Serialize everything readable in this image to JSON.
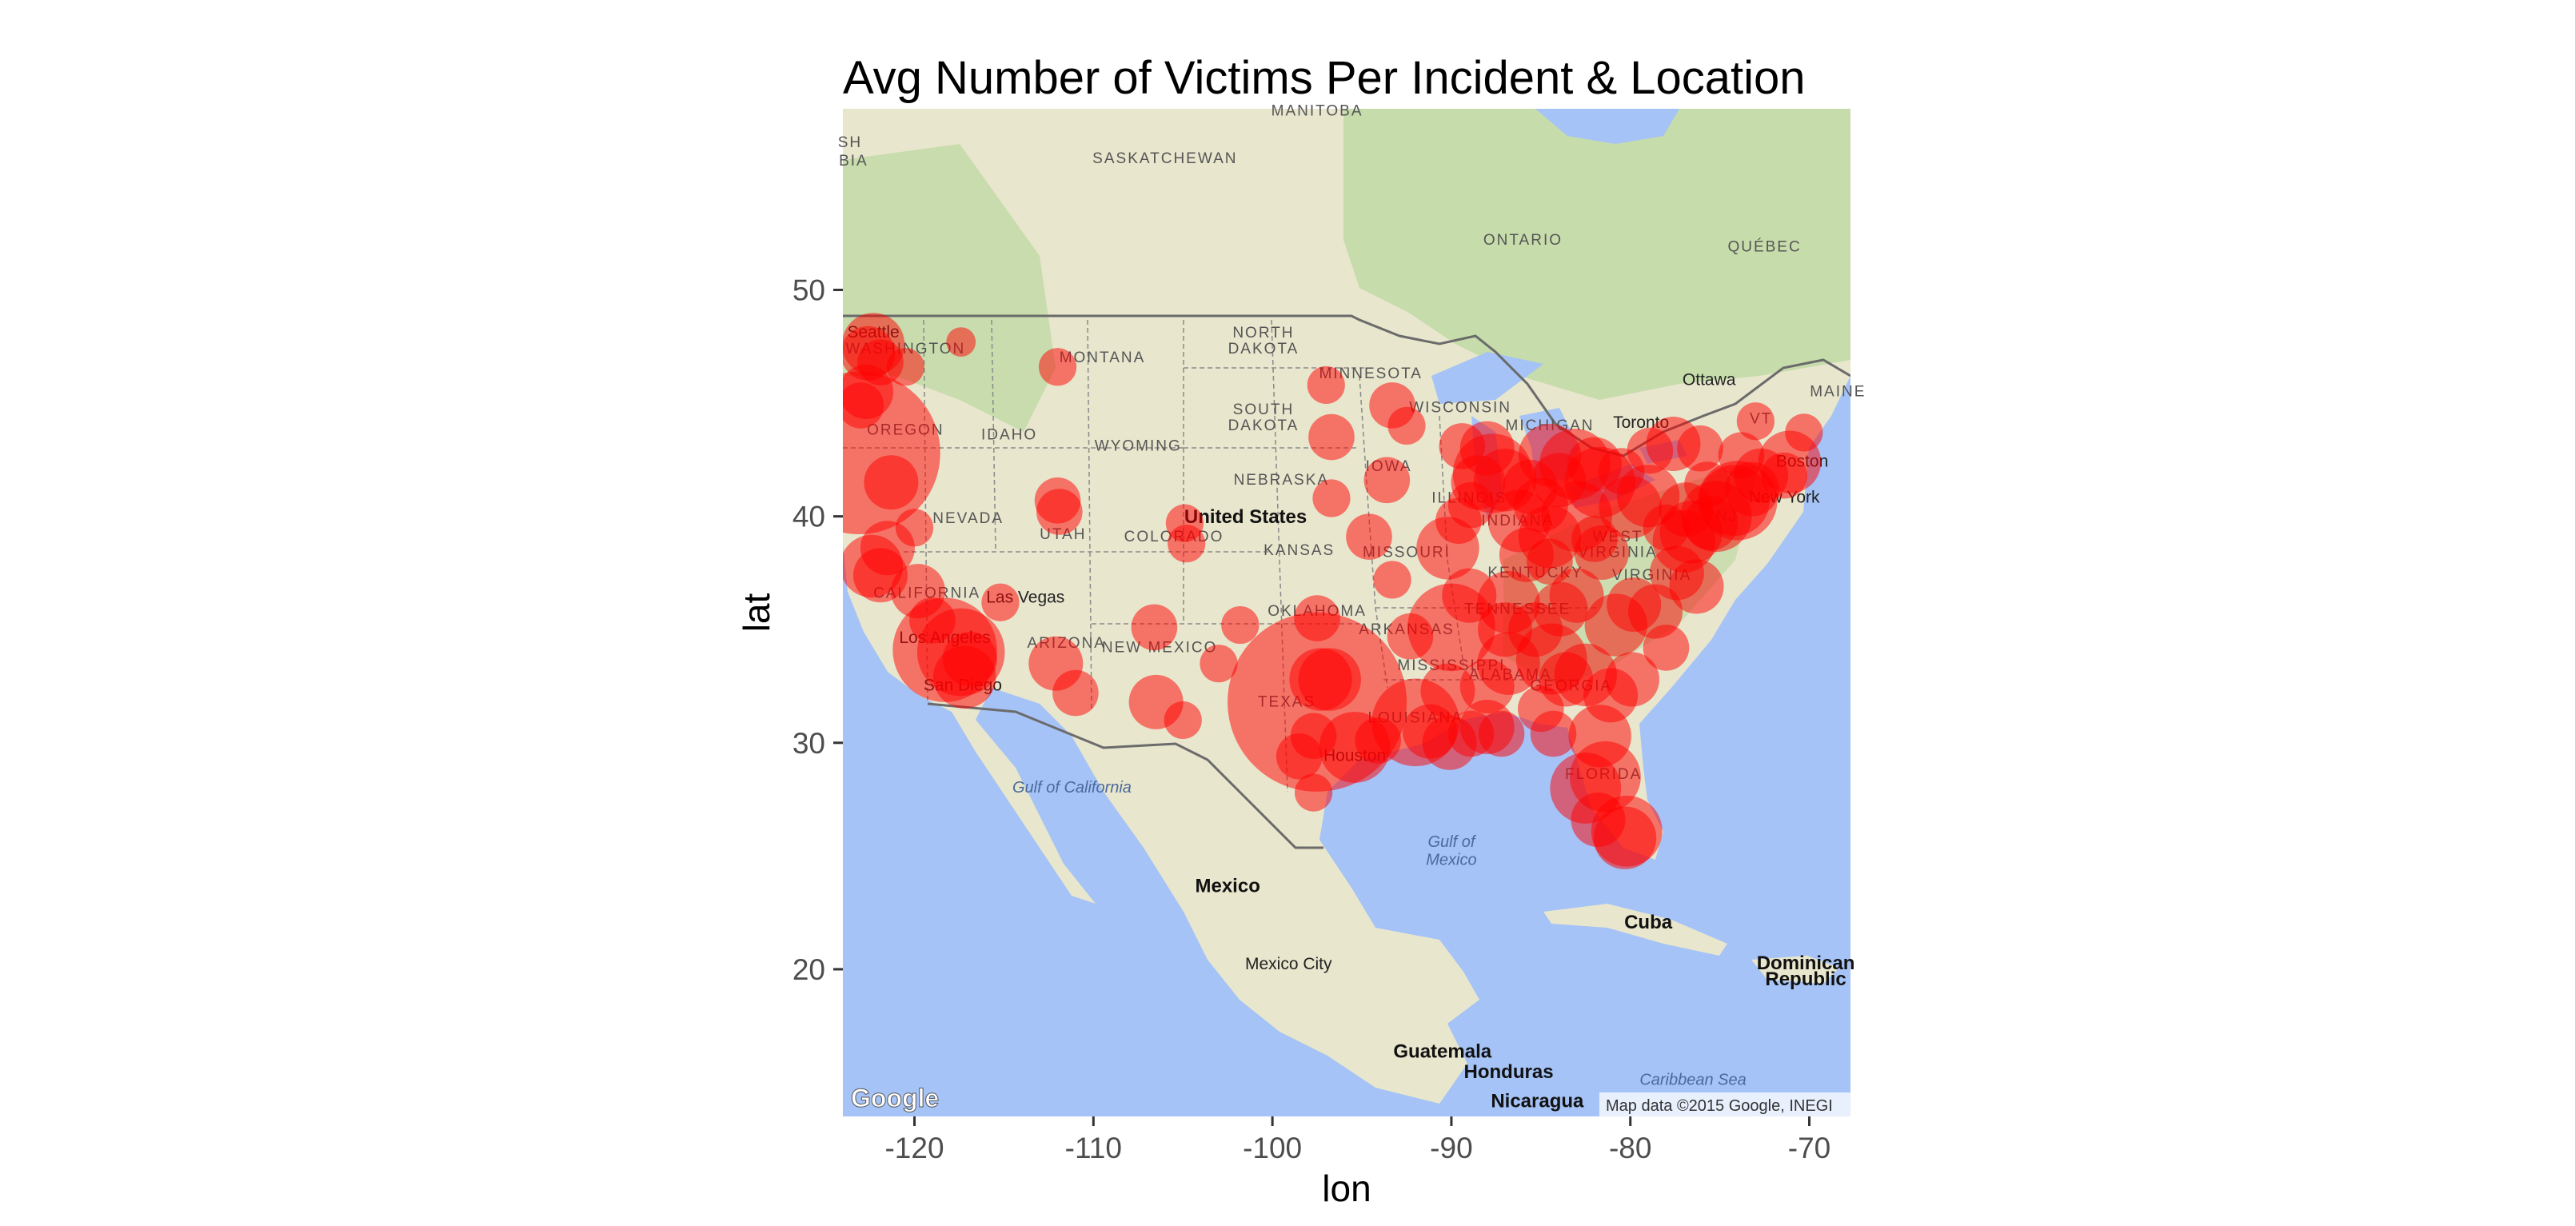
{
  "chart_data": {
    "type": "scatter",
    "title": "Avg Number of Victims Per Incident & Location",
    "xlabel": "lon",
    "ylabel": "lat",
    "xlim": [
      -124.0,
      -67.7
    ],
    "ylim": [
      13.5,
      58.0
    ],
    "x_ticks": [
      -120,
      -110,
      -100,
      -90,
      -80,
      -70
    ],
    "y_ticks": [
      20,
      30,
      40,
      50
    ],
    "x_tick_labels": [
      "-120",
      "-110",
      "-100",
      "-90",
      "-80",
      "-70"
    ],
    "y_tick_labels": [
      "20",
      "30",
      "40",
      "50"
    ],
    "grid": false,
    "legend": "none",
    "point_color": "#ff0000",
    "point_alpha": 0.5,
    "basemap": {
      "provider_logo": "Google",
      "attribution": "Map data ©2015 Google, INEGI",
      "colors": {
        "ocean": "#a5c3f6",
        "land": "#e8e6cd",
        "forest": "#bfd9a5",
        "lake": "#a5c3f6",
        "border": "#6b6b6b"
      },
      "labels": [
        {
          "text": "SASKATCHEWAN",
          "lon": -106,
          "lat": 55.6,
          "kind": "region"
        },
        {
          "text": "MANITOBA",
          "lon": -97.5,
          "lat": 57.7,
          "kind": "region"
        },
        {
          "text": "ONTARIO",
          "lon": -86,
          "lat": 52.0,
          "kind": "region"
        },
        {
          "text": "QUÉBEC",
          "lon": -72.5,
          "lat": 51.7,
          "kind": "region"
        },
        {
          "text": "SH",
          "lon": -123.6,
          "lat": 56.3,
          "kind": "region"
        },
        {
          "text": "BIA",
          "lon": -123.4,
          "lat": 55.5,
          "kind": "region"
        },
        {
          "text": "NORTH",
          "lon": -100.5,
          "lat": 47.9,
          "kind": "region"
        },
        {
          "text": "DAKOTA",
          "lon": -100.5,
          "lat": 47.2,
          "kind": "region"
        },
        {
          "text": "SOUTH",
          "lon": -100.5,
          "lat": 44.5,
          "kind": "region"
        },
        {
          "text": "DAKOTA",
          "lon": -100.5,
          "lat": 43.8,
          "kind": "region"
        },
        {
          "text": "MINNESOTA",
          "lon": -94.5,
          "lat": 46.1,
          "kind": "region"
        },
        {
          "text": "WISCONSIN",
          "lon": -89.5,
          "lat": 44.6,
          "kind": "region"
        },
        {
          "text": "MICHIGAN",
          "lon": -84.5,
          "lat": 43.8,
          "kind": "region"
        },
        {
          "text": "MONTANA",
          "lon": -109.5,
          "lat": 46.8,
          "kind": "region"
        },
        {
          "text": "WYOMING",
          "lon": -107.5,
          "lat": 42.9,
          "kind": "region"
        },
        {
          "text": "IDAHO",
          "lon": -114.7,
          "lat": 43.4,
          "kind": "region"
        },
        {
          "text": "OREGON",
          "lon": -120.5,
          "lat": 43.6,
          "kind": "region"
        },
        {
          "text": "WASHINGTON",
          "lon": -120.5,
          "lat": 47.2,
          "kind": "region"
        },
        {
          "text": "Seattle",
          "lon": -122.3,
          "lat": 47.9,
          "kind": "city"
        },
        {
          "text": "NEVADA",
          "lon": -117.0,
          "lat": 39.7,
          "kind": "region"
        },
        {
          "text": "UTAH",
          "lon": -111.7,
          "lat": 39.0,
          "kind": "region"
        },
        {
          "text": "COLORADO",
          "lon": -105.5,
          "lat": 38.9,
          "kind": "region"
        },
        {
          "text": "NEBRASKA",
          "lon": -99.5,
          "lat": 41.4,
          "kind": "region"
        },
        {
          "text": "IOWA",
          "lon": -93.5,
          "lat": 42.0,
          "kind": "region"
        },
        {
          "text": "ILLINOIS",
          "lon": -89.0,
          "lat": 40.6,
          "kind": "region"
        },
        {
          "text": "INDIANA",
          "lon": -86.3,
          "lat": 39.6,
          "kind": "region"
        },
        {
          "text": "United States",
          "lon": -101.5,
          "lat": 39.7,
          "kind": "country"
        },
        {
          "text": "KANSAS",
          "lon": -98.5,
          "lat": 38.3,
          "kind": "region"
        },
        {
          "text": "MISSOURI",
          "lon": -92.5,
          "lat": 38.2,
          "kind": "region"
        },
        {
          "text": "KENTUCKY",
          "lon": -85.3,
          "lat": 37.3,
          "kind": "region"
        },
        {
          "text": "WEST",
          "lon": -80.7,
          "lat": 38.9,
          "kind": "region"
        },
        {
          "text": "VIRGINIA",
          "lon": -80.7,
          "lat": 38.2,
          "kind": "region"
        },
        {
          "text": "VIRGINIA",
          "lon": -78.8,
          "lat": 37.2,
          "kind": "region"
        },
        {
          "text": "NJ",
          "lon": -74.6,
          "lat": 39.8,
          "kind": "region"
        },
        {
          "text": "New York",
          "lon": -71.4,
          "lat": 40.6,
          "kind": "city"
        },
        {
          "text": "Boston",
          "lon": -70.4,
          "lat": 42.2,
          "kind": "city"
        },
        {
          "text": "MAINE",
          "lon": -68.4,
          "lat": 45.3,
          "kind": "region"
        },
        {
          "text": "VT",
          "lon": -72.7,
          "lat": 44.1,
          "kind": "region"
        },
        {
          "text": "Ottawa",
          "lon": -75.6,
          "lat": 45.8,
          "kind": "city"
        },
        {
          "text": "Toronto",
          "lon": -79.4,
          "lat": 43.9,
          "kind": "city"
        },
        {
          "text": "CALIFORNIA",
          "lon": -119.3,
          "lat": 36.4,
          "kind": "region"
        },
        {
          "text": "Las Vegas",
          "lon": -113.8,
          "lat": 36.2,
          "kind": "city"
        },
        {
          "text": "Los Angeles",
          "lon": -118.3,
          "lat": 34.4,
          "kind": "city"
        },
        {
          "text": "San Diego",
          "lon": -117.3,
          "lat": 32.3,
          "kind": "city"
        },
        {
          "text": "ARIZONA",
          "lon": -111.5,
          "lat": 34.2,
          "kind": "region"
        },
        {
          "text": "NEW MEXICO",
          "lon": -106.3,
          "lat": 34.0,
          "kind": "region"
        },
        {
          "text": "OKLAHOMA",
          "lon": -97.5,
          "lat": 35.6,
          "kind": "region"
        },
        {
          "text": "ARKANSAS",
          "lon": -92.5,
          "lat": 34.8,
          "kind": "region"
        },
        {
          "text": "TENNESSEE",
          "lon": -86.3,
          "lat": 35.7,
          "kind": "region"
        },
        {
          "text": "MISSISSIPPI",
          "lon": -90.0,
          "lat": 33.2,
          "kind": "region"
        },
        {
          "text": "ALABAMA",
          "lon": -86.7,
          "lat": 32.8,
          "kind": "region"
        },
        {
          "text": "GEORGIA",
          "lon": -83.3,
          "lat": 32.3,
          "kind": "region"
        },
        {
          "text": "TEXAS",
          "lon": -99.2,
          "lat": 31.6,
          "kind": "region"
        },
        {
          "text": "LOUISIANA",
          "lon": -92.0,
          "lat": 30.9,
          "kind": "region"
        },
        {
          "text": "Houston",
          "lon": -95.4,
          "lat": 29.2,
          "kind": "city"
        },
        {
          "text": "FLORIDA",
          "lon": -81.5,
          "lat": 28.4,
          "kind": "region"
        },
        {
          "text": "Gulf of",
          "lon": -90.0,
          "lat": 25.4,
          "kind": "water"
        },
        {
          "text": "Mexico",
          "lon": -90.0,
          "lat": 24.6,
          "kind": "water"
        },
        {
          "text": "Gulf of California",
          "lon": -111.2,
          "lat": 27.8,
          "kind": "water"
        },
        {
          "text": "Mexico",
          "lon": -102.5,
          "lat": 23.4,
          "kind": "country"
        },
        {
          "text": "Mexico City",
          "lon": -99.1,
          "lat": 20.0,
          "kind": "city"
        },
        {
          "text": "Cuba",
          "lon": -79.0,
          "lat": 21.8,
          "kind": "country"
        },
        {
          "text": "Dominican",
          "lon": -70.2,
          "lat": 20.0,
          "kind": "country"
        },
        {
          "text": "Republic",
          "lon": -70.2,
          "lat": 19.3,
          "kind": "country"
        },
        {
          "text": "Guatemala",
          "lon": -90.5,
          "lat": 16.1,
          "kind": "country"
        },
        {
          "text": "Honduras",
          "lon": -86.8,
          "lat": 15.2,
          "kind": "country"
        },
        {
          "text": "Nicaragua",
          "lon": -85.2,
          "lat": 13.9,
          "kind": "country"
        },
        {
          "text": "Caribbean Sea",
          "lon": -76.5,
          "lat": 14.9,
          "kind": "water"
        }
      ]
    },
    "points": [
      {
        "x": -122.3,
        "y": 47.6,
        "size": 6
      },
      {
        "x": -122.6,
        "y": 47.2,
        "size": 5
      },
      {
        "x": -121.9,
        "y": 46.8,
        "size": 4
      },
      {
        "x": -120.5,
        "y": 46.6,
        "size": 3
      },
      {
        "x": -117.4,
        "y": 47.7,
        "size": 2
      },
      {
        "x": -112.0,
        "y": 46.6,
        "size": 3
      },
      {
        "x": -122.7,
        "y": 45.5,
        "size": 5
      },
      {
        "x": -123.0,
        "y": 44.9,
        "size": 4
      },
      {
        "x": -123.1,
        "y": 42.8,
        "size": 18
      },
      {
        "x": -121.3,
        "y": 41.5,
        "size": 5
      },
      {
        "x": -122.4,
        "y": 37.8,
        "size": 6
      },
      {
        "x": -121.9,
        "y": 37.4,
        "size": 5
      },
      {
        "x": -121.5,
        "y": 38.6,
        "size": 5
      },
      {
        "x": -119.8,
        "y": 36.7,
        "size": 5
      },
      {
        "x": -120.0,
        "y": 39.5,
        "size": 3
      },
      {
        "x": -119.0,
        "y": 35.4,
        "size": 4
      },
      {
        "x": -118.3,
        "y": 34.1,
        "size": 11
      },
      {
        "x": -117.4,
        "y": 34.0,
        "size": 9
      },
      {
        "x": -117.2,
        "y": 32.9,
        "size": 6
      },
      {
        "x": -116.9,
        "y": 33.7,
        "size": 5
      },
      {
        "x": -115.2,
        "y": 36.2,
        "size": 3
      },
      {
        "x": -112.1,
        "y": 33.5,
        "size": 5
      },
      {
        "x": -111.0,
        "y": 32.2,
        "size": 4
      },
      {
        "x": -112.0,
        "y": 40.7,
        "size": 4
      },
      {
        "x": -111.9,
        "y": 40.2,
        "size": 4
      },
      {
        "x": -104.9,
        "y": 39.7,
        "size": 3
      },
      {
        "x": -104.8,
        "y": 38.8,
        "size": 3
      },
      {
        "x": -106.6,
        "y": 35.1,
        "size": 4
      },
      {
        "x": -106.5,
        "y": 31.8,
        "size": 5
      },
      {
        "x": -105.0,
        "y": 31.0,
        "size": 3
      },
      {
        "x": -103.0,
        "y": 33.5,
        "size": 3
      },
      {
        "x": -101.8,
        "y": 35.2,
        "size": 3
      },
      {
        "x": -97.5,
        "y": 35.5,
        "size": 4
      },
      {
        "x": -97.3,
        "y": 32.8,
        "size": 6
      },
      {
        "x": -96.8,
        "y": 32.8,
        "size": 6
      },
      {
        "x": -97.5,
        "y": 31.8,
        "size": 20
      },
      {
        "x": -95.4,
        "y": 29.8,
        "size": 7
      },
      {
        "x": -94.1,
        "y": 30.1,
        "size": 4
      },
      {
        "x": -98.5,
        "y": 29.4,
        "size": 4
      },
      {
        "x": -97.7,
        "y": 30.3,
        "size": 4
      },
      {
        "x": -97.7,
        "y": 27.8,
        "size": 3
      },
      {
        "x": -92.0,
        "y": 30.9,
        "size": 9
      },
      {
        "x": -91.2,
        "y": 30.5,
        "size": 5
      },
      {
        "x": -90.1,
        "y": 30.0,
        "size": 5
      },
      {
        "x": -90.2,
        "y": 32.3,
        "size": 5
      },
      {
        "x": -92.3,
        "y": 34.7,
        "size": 4
      },
      {
        "x": -94.6,
        "y": 39.1,
        "size": 4
      },
      {
        "x": -90.2,
        "y": 38.6,
        "size": 6
      },
      {
        "x": -93.3,
        "y": 37.2,
        "size": 3
      },
      {
        "x": -96.7,
        "y": 40.8,
        "size": 3
      },
      {
        "x": -93.6,
        "y": 41.6,
        "size": 4
      },
      {
        "x": -96.7,
        "y": 43.5,
        "size": 4
      },
      {
        "x": -93.3,
        "y": 44.9,
        "size": 4
      },
      {
        "x": -92.5,
        "y": 44.0,
        "size": 3
      },
      {
        "x": -97.0,
        "y": 45.8,
        "size": 3
      },
      {
        "x": -88.0,
        "y": 43.0,
        "size": 5
      },
      {
        "x": -89.4,
        "y": 43.1,
        "size": 4
      },
      {
        "x": -87.7,
        "y": 41.9,
        "size": 8
      },
      {
        "x": -88.9,
        "y": 40.5,
        "size": 4
      },
      {
        "x": -89.6,
        "y": 39.8,
        "size": 4
      },
      {
        "x": -86.2,
        "y": 39.8,
        "size": 6
      },
      {
        "x": -85.6,
        "y": 41.3,
        "size": 5
      },
      {
        "x": -84.5,
        "y": 42.7,
        "size": 6
      },
      {
        "x": -83.1,
        "y": 42.3,
        "size": 7
      },
      {
        "x": -84.5,
        "y": 39.1,
        "size": 6
      },
      {
        "x": -83.0,
        "y": 40.0,
        "size": 7
      },
      {
        "x": -81.7,
        "y": 41.5,
        "size": 7
      },
      {
        "x": -80.0,
        "y": 40.4,
        "size": 6
      },
      {
        "x": -85.8,
        "y": 38.3,
        "size": 5
      },
      {
        "x": -84.5,
        "y": 38.0,
        "size": 4
      },
      {
        "x": -86.8,
        "y": 36.2,
        "size": 6
      },
      {
        "x": -90.0,
        "y": 35.1,
        "size": 9
      },
      {
        "x": -85.3,
        "y": 35.0,
        "size": 5
      },
      {
        "x": -83.9,
        "y": 35.9,
        "size": 5
      },
      {
        "x": -86.8,
        "y": 33.5,
        "size": 6
      },
      {
        "x": -88.0,
        "y": 30.7,
        "size": 5
      },
      {
        "x": -84.4,
        "y": 33.7,
        "size": 7
      },
      {
        "x": -83.6,
        "y": 32.8,
        "size": 5
      },
      {
        "x": -81.1,
        "y": 32.1,
        "size": 5
      },
      {
        "x": -82.5,
        "y": 33.0,
        "size": 6
      },
      {
        "x": -80.8,
        "y": 35.2,
        "size": 6
      },
      {
        "x": -79.8,
        "y": 36.1,
        "size": 5
      },
      {
        "x": -78.6,
        "y": 35.8,
        "size": 5
      },
      {
        "x": -77.4,
        "y": 37.5,
        "size": 5
      },
      {
        "x": -76.3,
        "y": 36.9,
        "size": 5
      },
      {
        "x": -77.0,
        "y": 38.9,
        "size": 6
      },
      {
        "x": -76.6,
        "y": 39.3,
        "size": 6
      },
      {
        "x": -75.2,
        "y": 40.0,
        "size": 7
      },
      {
        "x": -74.2,
        "y": 40.7,
        "size": 7
      },
      {
        "x": -74.0,
        "y": 40.7,
        "size": 8
      },
      {
        "x": -73.2,
        "y": 41.2,
        "size": 5
      },
      {
        "x": -71.1,
        "y": 42.4,
        "size": 6
      },
      {
        "x": -71.4,
        "y": 41.8,
        "size": 4
      },
      {
        "x": -72.7,
        "y": 41.8,
        "size": 5
      },
      {
        "x": -73.8,
        "y": 42.7,
        "size": 4
      },
      {
        "x": -76.1,
        "y": 43.0,
        "size": 4
      },
      {
        "x": -77.6,
        "y": 43.2,
        "size": 5
      },
      {
        "x": -78.9,
        "y": 42.9,
        "size": 4
      },
      {
        "x": -73.0,
        "y": 44.2,
        "size": 3
      },
      {
        "x": -70.3,
        "y": 43.7,
        "size": 3
      },
      {
        "x": -79.9,
        "y": 32.8,
        "size": 5
      },
      {
        "x": -81.7,
        "y": 30.3,
        "size": 6
      },
      {
        "x": -82.5,
        "y": 28.0,
        "size": 7
      },
      {
        "x": -81.4,
        "y": 28.5,
        "size": 7
      },
      {
        "x": -80.2,
        "y": 26.1,
        "size": 7
      },
      {
        "x": -80.3,
        "y": 25.8,
        "size": 6
      },
      {
        "x": -81.8,
        "y": 26.6,
        "size": 5
      },
      {
        "x": -84.3,
        "y": 30.4,
        "size": 4
      },
      {
        "x": -87.2,
        "y": 30.4,
        "size": 4
      },
      {
        "x": -88.9,
        "y": 30.4,
        "size": 4
      },
      {
        "x": -75.5,
        "y": 39.7,
        "size": 5
      },
      {
        "x": -76.9,
        "y": 40.3,
        "size": 5
      },
      {
        "x": -75.7,
        "y": 41.4,
        "size": 4
      },
      {
        "x": -78.0,
        "y": 39.5,
        "size": 4
      },
      {
        "x": -79.0,
        "y": 40.9,
        "size": 6
      },
      {
        "x": -82.0,
        "y": 39.0,
        "size": 4
      },
      {
        "x": -81.6,
        "y": 38.4,
        "size": 5
      },
      {
        "x": -83.0,
        "y": 36.5,
        "size": 5
      },
      {
        "x": -78.0,
        "y": 34.2,
        "size": 4
      },
      {
        "x": -88.5,
        "y": 41.5,
        "size": 5
      },
      {
        "x": -87.0,
        "y": 41.6,
        "size": 6
      },
      {
        "x": -85.0,
        "y": 40.5,
        "size": 5
      },
      {
        "x": -84.0,
        "y": 41.6,
        "size": 5
      },
      {
        "x": -82.0,
        "y": 42.3,
        "size": 5
      },
      {
        "x": -80.5,
        "y": 42.0,
        "size": 4
      },
      {
        "x": -87.0,
        "y": 35.0,
        "size": 5
      },
      {
        "x": -89.0,
        "y": 36.5,
        "size": 5
      },
      {
        "x": -88.0,
        "y": 32.5,
        "size": 5
      },
      {
        "x": -85.0,
        "y": 31.5,
        "size": 4
      }
    ]
  }
}
